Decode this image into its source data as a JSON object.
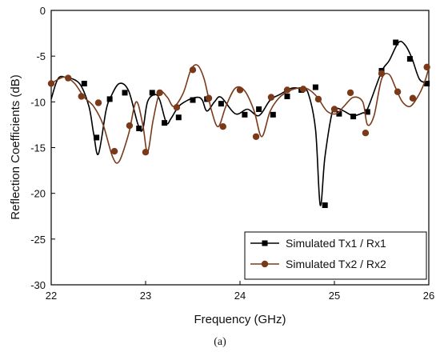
{
  "caption": "(a)",
  "chart_data": {
    "type": "line",
    "xlabel": "Frequency (GHz)",
    "ylabel": "Reflection Coefficients (dB)",
    "xlim": [
      22,
      26
    ],
    "ylim": [
      -30,
      0
    ],
    "xticks": [
      22,
      23,
      24,
      25,
      26
    ],
    "yticks": [
      0,
      -5,
      -10,
      -15,
      -20,
      -25,
      -30
    ],
    "legend_position": "bottom-right",
    "series": [
      {
        "name": "Simulated Tx1 / Rx1",
        "color": "#000000",
        "marker": "square",
        "x": [
          22.0,
          22.07,
          22.15,
          22.3,
          22.4,
          22.45,
          22.5,
          22.58,
          22.63,
          22.72,
          22.82,
          22.92,
          22.97,
          23.02,
          23.1,
          23.15,
          23.22,
          23.27,
          23.35,
          23.45,
          23.55,
          23.6,
          23.65,
          23.73,
          23.8,
          23.95,
          24.08,
          24.2,
          24.32,
          24.42,
          24.55,
          24.65,
          24.72,
          24.8,
          24.85,
          24.9,
          24.98,
          25.03,
          25.1,
          25.2,
          25.3,
          25.35,
          25.5,
          25.58,
          25.68,
          25.75,
          25.82,
          25.9,
          25.98
        ],
        "y": [
          -9.7,
          -7.5,
          -7.3,
          -8.0,
          -10.5,
          -13.5,
          -15.7,
          -11.0,
          -9.5,
          -8.0,
          -8.8,
          -12.5,
          -13.0,
          -10.0,
          -9.2,
          -9.8,
          -12.3,
          -11.8,
          -10.5,
          -9.8,
          -9.5,
          -9.8,
          -11.0,
          -10.0,
          -9.5,
          -11.3,
          -10.8,
          -11.5,
          -9.8,
          -9.2,
          -8.5,
          -8.6,
          -9.0,
          -13.0,
          -21.3,
          -16.0,
          -11.0,
          -10.7,
          -11.0,
          -11.5,
          -11.2,
          -10.8,
          -6.7,
          -5.5,
          -3.5,
          -3.8,
          -5.2,
          -7.5,
          -7.9
        ],
        "marker_x": [
          22.35,
          22.48,
          22.62,
          22.78,
          22.93,
          23.07,
          23.2,
          23.35,
          23.5,
          23.65,
          23.8,
          24.05,
          24.2,
          24.35,
          24.5,
          24.65,
          24.8,
          24.9,
          25.05,
          25.2,
          25.35,
          25.5,
          25.65,
          25.8,
          25.98
        ],
        "marker_y": [
          -8.0,
          -13.9,
          -9.7,
          -9.0,
          -12.9,
          -9.0,
          -12.3,
          -11.7,
          -9.8,
          -9.7,
          -10.2,
          -11.4,
          -10.8,
          -11.4,
          -9.4,
          -8.7,
          -8.4,
          -21.3,
          -11.3,
          -11.6,
          -11.1,
          -6.6,
          -3.5,
          -5.3,
          -8.0
        ]
      },
      {
        "name": "Simulated Tx2 / Rx2",
        "color": "#7a3a1a",
        "marker": "circle",
        "x": [
          22.0,
          22.08,
          22.15,
          22.25,
          22.35,
          22.45,
          22.55,
          22.65,
          22.72,
          22.82,
          22.9,
          22.97,
          23.02,
          23.08,
          23.15,
          23.23,
          23.3,
          23.4,
          23.48,
          23.55,
          23.62,
          23.7,
          23.77,
          23.85,
          23.95,
          24.05,
          24.15,
          24.23,
          24.32,
          24.42,
          24.52,
          24.62,
          24.72,
          24.82,
          24.92,
          25.02,
          25.1,
          25.2,
          25.3,
          25.35,
          25.42,
          25.5,
          25.58,
          25.65,
          25.72,
          25.8,
          25.88,
          25.95,
          26.0
        ],
        "y": [
          -8.0,
          -7.5,
          -7.3,
          -8.0,
          -9.5,
          -10.5,
          -12.5,
          -16.0,
          -16.5,
          -13.5,
          -10.0,
          -12.5,
          -15.5,
          -12.0,
          -9.0,
          -9.5,
          -10.5,
          -9.0,
          -6.5,
          -6.0,
          -7.5,
          -11.0,
          -12.7,
          -10.5,
          -8.5,
          -8.8,
          -11.0,
          -13.8,
          -11.0,
          -9.5,
          -8.8,
          -8.5,
          -8.6,
          -9.5,
          -11.0,
          -11.3,
          -10.5,
          -9.5,
          -10.0,
          -12.5,
          -11.5,
          -7.5,
          -7.0,
          -8.5,
          -10.0,
          -10.5,
          -9.5,
          -8.0,
          -6.3
        ],
        "marker_x": [
          22.0,
          22.18,
          22.32,
          22.5,
          22.67,
          22.83,
          23.0,
          23.15,
          23.33,
          23.5,
          23.67,
          23.82,
          24.0,
          24.17,
          24.33,
          24.5,
          24.67,
          24.83,
          25.0,
          25.17,
          25.33,
          25.5,
          25.67,
          25.83,
          25.98
        ],
        "marker_y": [
          -8.0,
          -7.4,
          -9.4,
          -10.1,
          -15.4,
          -12.6,
          -15.5,
          -9.0,
          -10.6,
          -6.5,
          -9.6,
          -12.7,
          -8.7,
          -13.8,
          -9.5,
          -8.7,
          -8.6,
          -9.7,
          -10.8,
          -9.0,
          -13.4,
          -6.9,
          -8.9,
          -9.6,
          -6.2
        ]
      }
    ]
  }
}
